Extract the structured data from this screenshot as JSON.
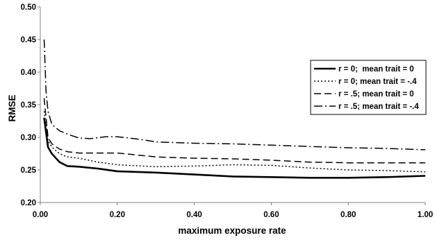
{
  "chart_data": {
    "type": "line",
    "title": "",
    "xlabel": "maximum exposure rate",
    "ylabel": "RMSE",
    "xlim": [
      0,
      1
    ],
    "ylim": [
      0.2,
      0.5
    ],
    "x_ticks": [
      "0.00",
      "0.20",
      "0.40",
      "0.60",
      "0.80",
      "1.00"
    ],
    "y_ticks": [
      "0.20",
      "0.25",
      "0.30",
      "0.35",
      "0.40",
      "0.45",
      "0.50"
    ],
    "grid": false,
    "legend_position": "right",
    "series": [
      {
        "name": "r = 0;  mean trait = 0",
        "style": "solid",
        "color": "#000000",
        "x": [
          0.01,
          0.02,
          0.03,
          0.05,
          0.07,
          0.1,
          0.15,
          0.2,
          0.3,
          0.4,
          0.5,
          0.6,
          0.7,
          0.8,
          0.9,
          1.0
        ],
        "y": [
          0.33,
          0.285,
          0.275,
          0.262,
          0.256,
          0.255,
          0.252,
          0.248,
          0.246,
          0.243,
          0.24,
          0.239,
          0.238,
          0.238,
          0.239,
          0.241
        ]
      },
      {
        "name": "r = 0; mean trait = -.4",
        "style": "dotted",
        "color": "#000000",
        "x": [
          0.01,
          0.02,
          0.03,
          0.05,
          0.07,
          0.1,
          0.15,
          0.2,
          0.3,
          0.4,
          0.5,
          0.6,
          0.7,
          0.8,
          0.9,
          1.0
        ],
        "y": [
          0.34,
          0.295,
          0.285,
          0.275,
          0.27,
          0.268,
          0.262,
          0.258,
          0.255,
          0.256,
          0.258,
          0.257,
          0.253,
          0.25,
          0.249,
          0.247
        ]
      },
      {
        "name": "r = .5; mean trait = 0",
        "style": "dashed",
        "color": "#000000",
        "x": [
          0.01,
          0.02,
          0.03,
          0.05,
          0.07,
          0.1,
          0.15,
          0.2,
          0.25,
          0.3,
          0.4,
          0.5,
          0.6,
          0.7,
          0.8,
          0.9,
          1.0
        ],
        "y": [
          0.36,
          0.3,
          0.29,
          0.282,
          0.278,
          0.276,
          0.276,
          0.276,
          0.273,
          0.27,
          0.268,
          0.267,
          0.265,
          0.262,
          0.261,
          0.261,
          0.261
        ]
      },
      {
        "name": "r = .5; mean trait = -.4",
        "style": "dashdot",
        "color": "#000000",
        "x": [
          0.01,
          0.015,
          0.02,
          0.03,
          0.05,
          0.08,
          0.1,
          0.13,
          0.17,
          0.2,
          0.23,
          0.27,
          0.3,
          0.4,
          0.5,
          0.6,
          0.7,
          0.8,
          0.9,
          1.0
        ],
        "y": [
          0.45,
          0.37,
          0.34,
          0.32,
          0.31,
          0.303,
          0.299,
          0.298,
          0.301,
          0.301,
          0.299,
          0.296,
          0.293,
          0.291,
          0.29,
          0.288,
          0.286,
          0.284,
          0.283,
          0.281
        ]
      }
    ]
  }
}
